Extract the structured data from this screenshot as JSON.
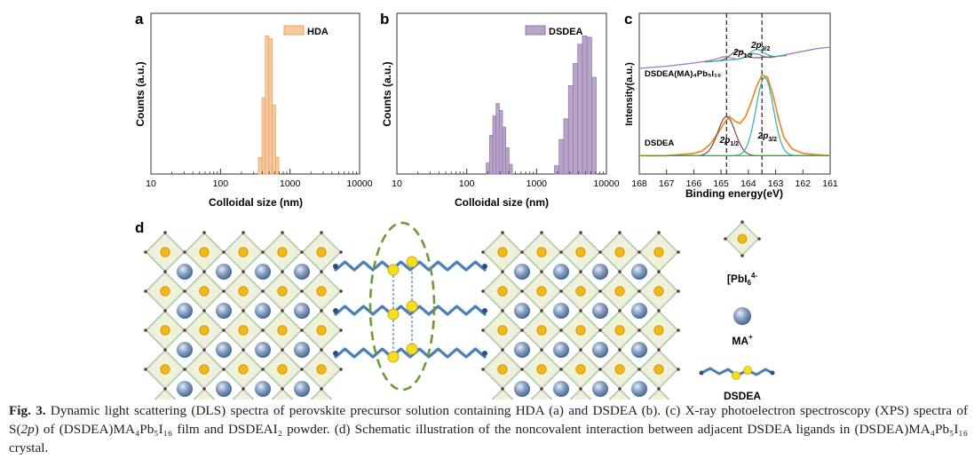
{
  "panel_letters": {
    "a": "a",
    "b": "b",
    "c": "c",
    "d": "d"
  },
  "chart_data": [
    {
      "type": "bar",
      "panel": "a",
      "legend": [
        "HDA"
      ],
      "xlabel": "Colloidal size (nm)",
      "ylabel": "Counts (a.u.)",
      "x_scale": "log",
      "xlim": [
        10,
        10000
      ],
      "x_ticks": [
        "10",
        "100",
        "1000",
        "10000"
      ],
      "series": [
        {
          "name": "HDA",
          "color": "#f7c99b",
          "edge": "#e4a066",
          "bins": [
            {
              "x0": 350,
              "x1": 395,
              "value": 0.12
            },
            {
              "x0": 395,
              "x1": 440,
              "value": 0.55
            },
            {
              "x0": 440,
              "x1": 495,
              "value": 1.0
            },
            {
              "x0": 495,
              "x1": 555,
              "value": 0.98
            },
            {
              "x0": 555,
              "x1": 620,
              "value": 0.5
            },
            {
              "x0": 620,
              "x1": 690,
              "value": 0.12
            }
          ]
        }
      ]
    },
    {
      "type": "bar",
      "panel": "b",
      "legend": [
        "DSDEA"
      ],
      "xlabel": "Colloidal size (nm)",
      "ylabel": "Counts (a.u.)",
      "x_scale": "log",
      "xlim": [
        10,
        10000
      ],
      "x_ticks": [
        "10",
        "100",
        "1000",
        "10000"
      ],
      "series": [
        {
          "name": "DSDEA",
          "color": "#b7a4c8",
          "edge": "#8e79a6",
          "bins": [
            {
              "x0": 190,
              "x1": 212,
              "value": 0.08
            },
            {
              "x0": 212,
              "x1": 236,
              "value": 0.28
            },
            {
              "x0": 236,
              "x1": 263,
              "value": 0.42
            },
            {
              "x0": 263,
              "x1": 293,
              "value": 0.51
            },
            {
              "x0": 293,
              "x1": 326,
              "value": 0.46
            },
            {
              "x0": 326,
              "x1": 363,
              "value": 0.34
            },
            {
              "x0": 363,
              "x1": 404,
              "value": 0.19
            },
            {
              "x0": 404,
              "x1": 450,
              "value": 0.07
            },
            {
              "x0": 1800,
              "x1": 2100,
              "value": 0.06
            },
            {
              "x0": 2100,
              "x1": 2450,
              "value": 0.25
            },
            {
              "x0": 2450,
              "x1": 2860,
              "value": 0.4
            },
            {
              "x0": 2860,
              "x1": 3330,
              "value": 0.64
            },
            {
              "x0": 3330,
              "x1": 3880,
              "value": 0.8
            },
            {
              "x0": 3880,
              "x1": 4520,
              "value": 0.94
            },
            {
              "x0": 4520,
              "x1": 5270,
              "value": 1.0
            },
            {
              "x0": 5270,
              "x1": 6150,
              "value": 0.99
            },
            {
              "x0": 6150,
              "x1": 7150,
              "value": 0.7
            }
          ]
        }
      ]
    },
    {
      "type": "line",
      "panel": "c",
      "xlabel": "Binding energy(eV)",
      "ylabel": "Intensity(a.u.)",
      "xlim": [
        168,
        161
      ],
      "x_ticks": [
        "168",
        "167",
        "166",
        "165",
        "164",
        "163",
        "162",
        "161"
      ],
      "dashed_lines_x": [
        164.8,
        163.5
      ],
      "sample_labels": {
        "top": "DSDEA(MA)₄Pb₅I₁₆",
        "bottom": "DSDEA"
      },
      "peak_labels": [
        {
          "text": "2p1/2",
          "x": 164.4,
          "which": "top"
        },
        {
          "text": "2p3/2",
          "x": 163.7,
          "which": "top"
        },
        {
          "text": "2p1/2",
          "x": 164.7,
          "which": "bottom"
        },
        {
          "text": "2p3/2",
          "x": 163.3,
          "which": "bottom"
        }
      ],
      "series": [
        {
          "name": "DSDEA(MA)4Pb5I16 raw",
          "color": "#9a7fc2",
          "x": [
            168,
            167.5,
            167,
            166.5,
            166,
            165.5,
            165.2,
            164.9,
            164.7,
            164.4,
            164.2,
            164,
            163.8,
            163.6,
            163.4,
            163.2,
            163,
            162.7,
            162.4,
            162,
            161.5,
            161
          ],
          "y": [
            0.3,
            0.32,
            0.34,
            0.37,
            0.4,
            0.44,
            0.47,
            0.52,
            0.5,
            0.47,
            0.5,
            0.55,
            0.58,
            0.56,
            0.52,
            0.5,
            0.52,
            0.55,
            0.58,
            0.62,
            0.67,
            0.7
          ]
        },
        {
          "name": "DSDEA raw",
          "color": "#f08a2c",
          "x": [
            168,
            167.5,
            167,
            166.5,
            166,
            165.7,
            165.4,
            165.1,
            164.9,
            164.7,
            164.5,
            164.3,
            164.1,
            163.9,
            163.7,
            163.5,
            163.3,
            163.1,
            162.9,
            162.7,
            162.4,
            162,
            161.5,
            161
          ],
          "y": [
            0.02,
            0.02,
            0.02,
            0.03,
            0.04,
            0.06,
            0.12,
            0.22,
            0.3,
            0.36,
            0.32,
            0.3,
            0.36,
            0.48,
            0.62,
            0.72,
            0.7,
            0.55,
            0.35,
            0.18,
            0.08,
            0.04,
            0.03,
            0.02
          ]
        }
      ]
    }
  ],
  "panel_d": {
    "legend_labels": {
      "pbi6": "[PbI6]4-",
      "ma": "MA+",
      "dsdea": "DSDEA"
    }
  },
  "caption": {
    "label": "Fig. 3.",
    "line1": "Dynamic light scattering (DLS) spectra of perovskite precursor solution containing HDA (a) and DSDEA (b). (c) X-ray photoelectron spectroscopy (XPS)",
    "line2a": "spectra of S(",
    "line2b": "2p",
    "line2c": ") of (DSDEA)MA₄Pb₅I₁₆ film and DSDEAI₂ powder. (d) Schematic illustration of the noncovalent interaction between adjacent DSDEA ligands in",
    "line3": "(DSDEA)MA₄Pb₅I₁₆ crystal."
  }
}
